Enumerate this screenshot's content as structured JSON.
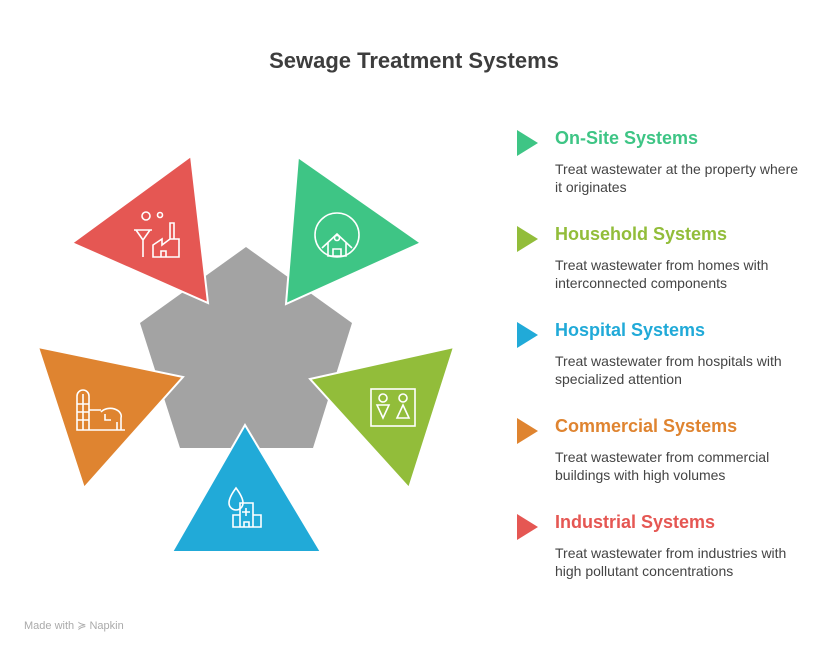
{
  "title": "Sewage Treatment Systems",
  "items": [
    {
      "title": "On-Site Systems",
      "desc": "Treat wastewater at the property where it originates",
      "color": "#3EC585",
      "icon": "house-globe-icon"
    },
    {
      "title": "Household Systems",
      "desc": "Treat wastewater from homes with interconnected components",
      "color": "#92BD3A",
      "icon": "restroom-icon"
    },
    {
      "title": "Hospital Systems",
      "desc": "Treat wastewater from hospitals with specialized attention",
      "color": "#21AAD8",
      "icon": "hospital-drop-icon"
    },
    {
      "title": "Commercial Systems",
      "desc": "Treat wastewater from commercial buildings with high volumes",
      "color": "#DF8430",
      "icon": "silo-building-icon"
    },
    {
      "title": "Industrial Systems",
      "desc": "Treat wastewater from industries with high pollutant concentrations",
      "color": "#E55753",
      "icon": "factory-icon"
    }
  ],
  "center_color": "#A3A3A3",
  "footer": {
    "made_with": "Made with",
    "brand": "Napkin"
  }
}
